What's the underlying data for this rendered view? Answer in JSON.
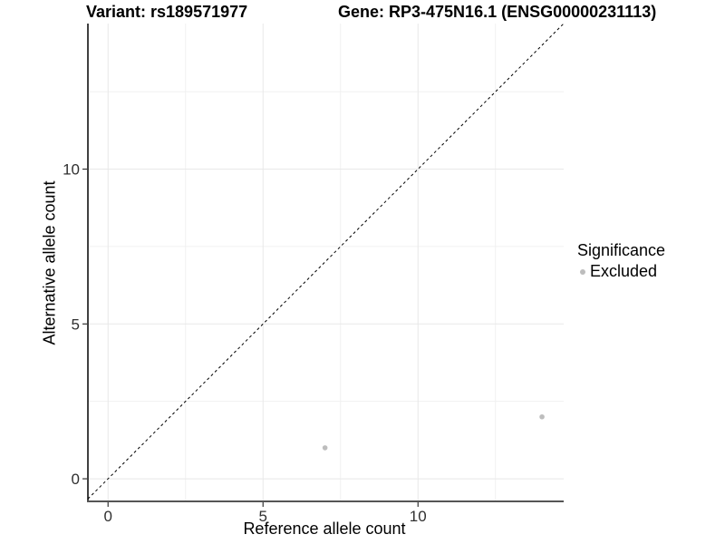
{
  "chart_data": {
    "type": "scatter",
    "title_left": "Variant: rs189571977",
    "title_right": "Gene: RP3-475N16.1 (ENSG00000231113)",
    "xlabel": "Reference allele count",
    "ylabel": "Alternative allele count",
    "xlim": [
      -0.65,
      14.7
    ],
    "ylim": [
      -0.73,
      14.7
    ],
    "x_ticks": [
      0,
      5,
      10
    ],
    "y_ticks": [
      0,
      5,
      10
    ],
    "x_minor_ticks": [
      2.5,
      7.5,
      12.5
    ],
    "y_minor_ticks": [
      2.5,
      7.5,
      12.5
    ],
    "grid": true,
    "identity_line": {
      "equation": "y = x",
      "style": "dashed",
      "color": "#000000"
    },
    "series": [
      {
        "name": "Excluded",
        "color": "#bdbdbd",
        "points": [
          {
            "x": 7,
            "y": 1
          },
          {
            "x": 14,
            "y": 2
          }
        ]
      }
    ],
    "legend": {
      "title": "Significance",
      "position": "right",
      "items": [
        {
          "label": "Excluded",
          "color": "#bdbdbd"
        }
      ]
    },
    "colors": {
      "background": "#ffffff",
      "grid_major": "#e8e8e8",
      "grid_minor": "#f1f1f1",
      "y_axis_line": "#000000",
      "x_axis_line": "#555555",
      "tick": "#333333",
      "tick_label": "#303030"
    }
  }
}
